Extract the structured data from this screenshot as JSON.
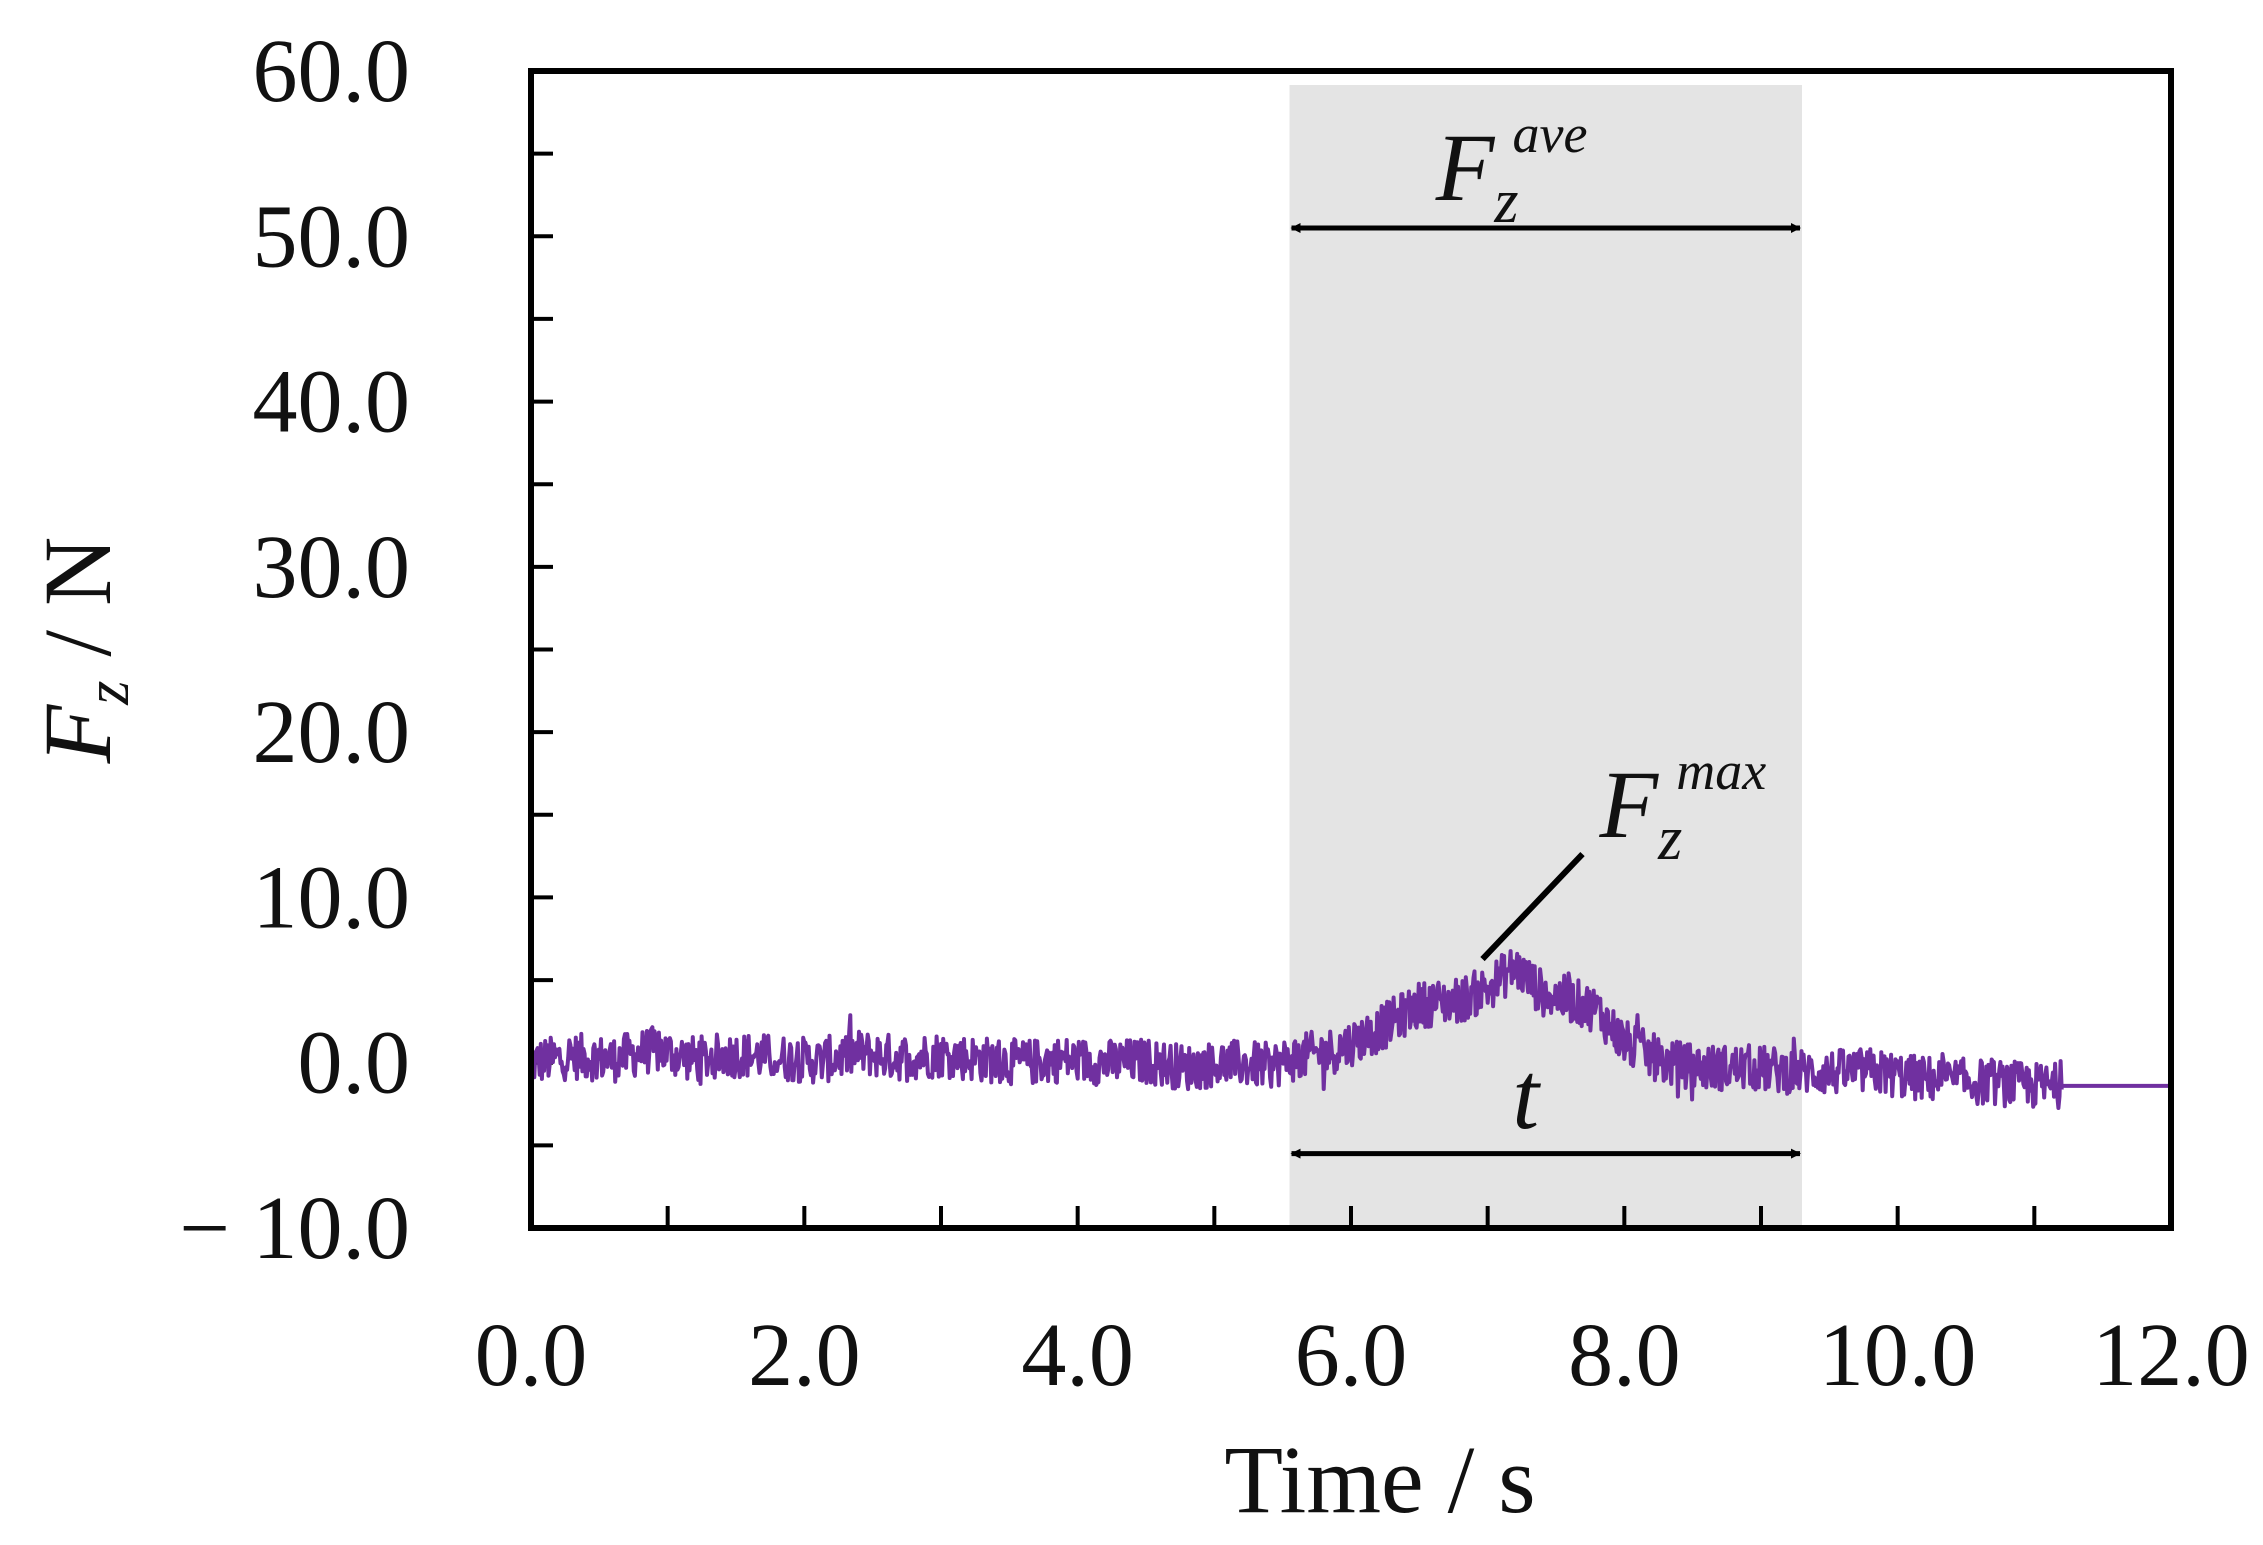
{
  "chart_data": {
    "type": "line",
    "title": "",
    "xlabel": "Time  / s",
    "ylabel": {
      "main": "F",
      "sub": "z",
      "unit": " / N"
    },
    "xlim": [
      0,
      12
    ],
    "ylim": [
      -10,
      60
    ],
    "x_ticks": [
      0,
      2,
      4,
      6,
      8,
      10,
      12
    ],
    "x_tick_labels": [
      "0.0",
      "2.0",
      "4.0",
      "6.0",
      "8.0",
      "10.0",
      "12.0"
    ],
    "x_minor_ticks": [
      1,
      3,
      5,
      7,
      9,
      11
    ],
    "y_ticks": [
      -10,
      0,
      10,
      20,
      30,
      40,
      50,
      60
    ],
    "y_tick_labels": [
      "− 10.0",
      "0.0",
      "10.0",
      "20.0",
      "30.0",
      "40.0",
      "50.0",
      "60.0"
    ],
    "y_minor_ticks": [
      -5,
      5,
      15,
      25,
      35,
      45,
      55
    ],
    "grid": false,
    "series": [
      {
        "name": "Fz",
        "color": "#7030a0",
        "x": [
          0,
          0.3,
          0.6,
          0.9,
          1.2,
          1.5,
          1.8,
          2.1,
          2.4,
          2.7,
          3.0,
          3.3,
          3.6,
          3.9,
          4.2,
          4.5,
          4.8,
          5.1,
          5.4,
          5.6,
          5.9,
          6.2,
          6.5,
          6.8,
          7.0,
          7.2,
          7.4,
          7.6,
          7.8,
          8.0,
          8.3,
          8.6,
          8.9,
          9.2,
          9.5,
          9.8,
          10.1,
          10.4,
          10.7,
          11.0,
          11.2,
          12.0
        ],
        "y": [
          0.0,
          0.4,
          0.2,
          0.8,
          0.2,
          0.5,
          0.3,
          0.1,
          0.6,
          0.3,
          0.5,
          0.2,
          0.0,
          0.2,
          0.0,
          0.1,
          -0.3,
          0.0,
          -0.2,
          0.3,
          0.8,
          2.0,
          3.5,
          3.8,
          4.5,
          5.8,
          4.2,
          3.8,
          3.2,
          1.2,
          0.0,
          -0.3,
          -0.3,
          -0.5,
          -0.6,
          -0.5,
          -0.9,
          -1.1,
          -1.2,
          -1.4,
          -1.4,
          -1.4
        ]
      }
    ],
    "noise_amplitude": 1.4,
    "noise_end_x": 11.2,
    "shaded_region": {
      "x0": 5.55,
      "x1": 9.3,
      "color": "#e4e4e4"
    },
    "annotations": {
      "fz_ave": {
        "main": "F",
        "sub": "z",
        "sup": "ave",
        "arrow_y": 50.5,
        "arrow_x0": 5.55,
        "arrow_x1": 9.3
      },
      "fz_max": {
        "main": "F",
        "sub": "z",
        "sup": "max",
        "point_x": 7.05,
        "point_y": 7.0
      },
      "t": {
        "label": "t",
        "arrow_y": -5.5,
        "arrow_x0": 5.55,
        "arrow_x1": 9.3
      }
    }
  }
}
